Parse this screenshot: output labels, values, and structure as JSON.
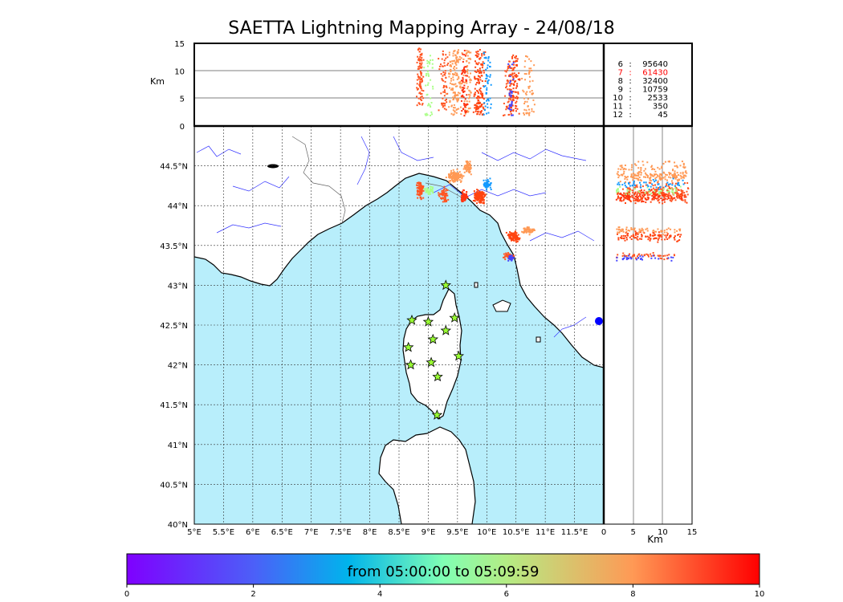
{
  "title": "SAETTA Lightning Mapping Array - 24/08/18",
  "map": {
    "lon_ticks": [
      "5°E",
      "5.5°E",
      "6°E",
      "6.5°E",
      "7°E",
      "7.5°E",
      "8°E",
      "8.5°E",
      "9°E",
      "9.5°E",
      "10°E",
      "10.5°E",
      "11°E",
      "11.5°E"
    ],
    "lat_ticks": [
      "44.5°N",
      "44°N",
      "43.5°N",
      "43°N",
      "42.5°N",
      "42°N",
      "41.5°N",
      "41°N",
      "40.5°N",
      "40°N"
    ],
    "lon_range": [
      5,
      12
    ],
    "lat_range": [
      40,
      45
    ],
    "sea_color": "#b8eefb",
    "land_color": "#ffffff",
    "grid": "dashed",
    "stations_icon": "star-icon",
    "station_color": "#99ff33",
    "stations": [
      {
        "lon": 9.3,
        "lat": 43.0
      },
      {
        "lon": 8.72,
        "lat": 42.56
      },
      {
        "lon": 9.0,
        "lat": 42.54
      },
      {
        "lon": 9.45,
        "lat": 42.59
      },
      {
        "lon": 9.3,
        "lat": 42.43
      },
      {
        "lon": 9.08,
        "lat": 42.32
      },
      {
        "lon": 8.66,
        "lat": 42.22
      },
      {
        "lon": 9.52,
        "lat": 42.11
      },
      {
        "lon": 9.05,
        "lat": 42.03
      },
      {
        "lon": 8.7,
        "lat": 42.0
      },
      {
        "lon": 9.16,
        "lat": 41.85
      },
      {
        "lon": 9.15,
        "lat": 41.37
      }
    ]
  },
  "alt_panel": {
    "ylabel": "Km",
    "yticks": [
      "15",
      "10",
      "5",
      "0"
    ],
    "ylim": [
      0,
      15
    ]
  },
  "side_panel": {
    "xlabel": "Km",
    "xticks": [
      "0",
      "5",
      "10",
      "15"
    ],
    "xlim": [
      0,
      15
    ]
  },
  "stats": [
    {
      "key": "6",
      "value": "95640",
      "color": "#000000"
    },
    {
      "key": "7",
      "value": "61430",
      "color": "#ff0000"
    },
    {
      "key": "8",
      "value": "32400",
      "color": "#000000"
    },
    {
      "key": "9",
      "value": "10759",
      "color": "#000000"
    },
    {
      "key": "10",
      "value": "2533",
      "color": "#000000"
    },
    {
      "key": "11",
      "value": "350",
      "color": "#000000"
    },
    {
      "key": "12",
      "value": "45",
      "color": "#000000"
    }
  ],
  "colorbar": {
    "label": "from 05:00:00 to 05:09:59",
    "ticks": [
      "0",
      "2",
      "4",
      "6",
      "8",
      "10"
    ],
    "range": [
      0,
      10
    ],
    "colormap": "rainbow"
  },
  "clusters": [
    {
      "lon": 8.85,
      "lat": 44.2,
      "dlon": 0.08,
      "dlat": 0.15,
      "n": 90,
      "color": "#ff5522",
      "z": [
        3,
        14.5
      ]
    },
    {
      "lon": 9.25,
      "lat": 44.15,
      "dlon": 0.1,
      "dlat": 0.12,
      "n": 60,
      "color": "#ff5522",
      "z": [
        3,
        14
      ]
    },
    {
      "lon": 9.45,
      "lat": 44.38,
      "dlon": 0.18,
      "dlat": 0.1,
      "n": 140,
      "color": "#ff9955",
      "z": [
        2,
        14
      ]
    },
    {
      "lon": 9.65,
      "lat": 44.5,
      "dlon": 0.1,
      "dlat": 0.12,
      "n": 60,
      "color": "#ff9955",
      "z": [
        2,
        14
      ]
    },
    {
      "lon": 9.85,
      "lat": 44.12,
      "dlon": 0.15,
      "dlat": 0.12,
      "n": 140,
      "color": "#ff4411",
      "z": [
        2,
        14
      ]
    },
    {
      "lon": 9.6,
      "lat": 44.12,
      "dlon": 0.08,
      "dlat": 0.1,
      "n": 60,
      "color": "#ff3311",
      "z": [
        2,
        14
      ]
    },
    {
      "lon": 9.0,
      "lat": 44.2,
      "dlon": 0.1,
      "dlat": 0.06,
      "n": 40,
      "color": "#aaff88",
      "z": [
        2,
        13
      ]
    },
    {
      "lon": 10.0,
      "lat": 44.28,
      "dlon": 0.1,
      "dlat": 0.08,
      "n": 50,
      "color": "#1199ff",
      "z": [
        2,
        14
      ]
    },
    {
      "lon": 10.45,
      "lat": 43.62,
      "dlon": 0.15,
      "dlat": 0.08,
      "n": 100,
      "color": "#ff4411",
      "z": [
        2,
        13
      ]
    },
    {
      "lon": 10.7,
      "lat": 43.7,
      "dlon": 0.15,
      "dlat": 0.06,
      "n": 60,
      "color": "#ff9955",
      "z": [
        2,
        13
      ]
    },
    {
      "lon": 10.35,
      "lat": 43.38,
      "dlon": 0.12,
      "dlat": 0.06,
      "n": 50,
      "color": "#ff5522",
      "z": [
        2,
        12
      ]
    },
    {
      "lon": 10.4,
      "lat": 43.35,
      "dlon": 0.06,
      "dlat": 0.05,
      "n": 30,
      "color": "#4444ff",
      "z": [
        2,
        12
      ]
    }
  ]
}
